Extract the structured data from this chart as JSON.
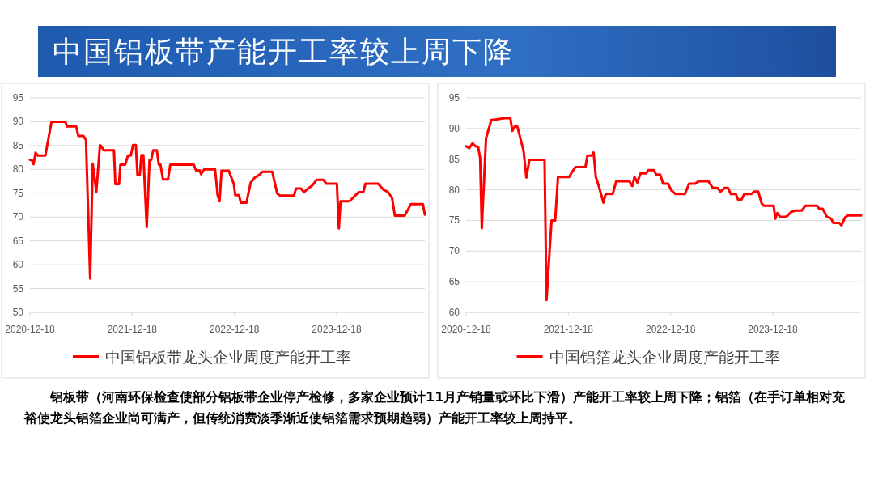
{
  "chart_data": [
    {
      "type": "line",
      "title": "中国铝板带产能开工率较上周下降",
      "annotations": [
        "铝板带（河南环保检查使部分铝板带企业停产检修，多家企业预计11月产销量或环比下滑）产能开工率较上周下降；铝箔（在手订单相对充裕使龙头铝箔企业尚可满产，但传统消费淡季渐近使铝箔需求预期趋弱）产能开工率较上周持平。"
      ],
      "x": [
        "2020-12-18",
        "2020-12-24",
        "2020-12-31",
        "2021-01-07",
        "2021-01-15",
        "2021-02-11",
        "2021-02-24",
        "2021-03-05",
        "2021-04-23",
        "2021-04-30",
        "2021-06-01",
        "2021-06-09",
        "2021-06-27",
        "2021-07-06",
        "2021-07-21",
        "2021-07-30",
        "2021-08-12",
        "2021-08-25",
        "2021-09-09",
        "2021-10-14",
        "2021-10-19",
        "2021-11-01",
        "2021-11-06",
        "2021-11-23",
        "2021-12-03",
        "2021-12-13",
        "2021-12-21",
        "2021-12-31",
        "2022-01-06",
        "2022-01-14",
        "2022-01-20",
        "2022-01-27",
        "2022-02-08",
        "2022-02-18",
        "2022-02-24",
        "2022-03-03",
        "2022-03-16",
        "2022-03-23",
        "2022-03-29",
        "2022-04-07",
        "2022-04-25",
        "2022-05-03",
        "2022-07-26",
        "2022-08-03",
        "2022-08-16",
        "2022-08-21",
        "2022-09-01",
        "2022-10-10",
        "2022-10-19",
        "2022-10-26",
        "2022-11-02",
        "2022-11-28",
        "2022-12-16",
        "2022-12-21",
        "2023-01-03",
        "2023-01-10",
        "2023-01-30",
        "2023-02-14",
        "2023-03-01",
        "2023-03-16",
        "2023-03-28",
        "2023-05-02",
        "2023-05-20",
        "2023-05-30",
        "2023-07-19",
        "2023-07-26",
        "2023-08-13",
        "2023-08-23",
        "2023-09-07",
        "2023-09-22",
        "2023-10-07",
        "2023-11-01",
        "2023-11-11",
        "2023-12-19",
        "2023-12-26",
        "2024-01-01",
        "2024-02-02",
        "2024-02-24",
        "2024-03-05",
        "2024-03-22",
        "2024-03-30",
        "2024-05-14",
        "2024-06-03",
        "2024-06-18",
        "2024-07-03",
        "2024-07-13",
        "2024-08-17",
        "2024-09-08",
        "2024-10-21",
        "2024-10-28"
      ],
      "series": [
        {
          "name": "中国铝板带龙头企业周度产能开工率",
          "color": "#ff0000",
          "values": [
            82.0,
            82.0,
            81.1,
            83.5,
            82.9,
            82.9,
            87.1,
            90,
            90,
            89,
            89,
            87,
            87,
            86.2,
            57.1,
            81.2,
            75.3,
            85.1,
            84,
            84,
            76.9,
            76.9,
            81,
            81,
            82.9,
            82.9,
            85.1,
            85.1,
            78.8,
            78.8,
            83,
            83,
            67.9,
            82,
            82,
            84,
            84,
            81,
            81,
            77.9,
            77.9,
            81,
            81,
            79.8,
            79.8,
            79,
            80,
            80,
            74.6,
            73.3,
            79.7,
            79.7,
            76.9,
            74.6,
            74.6,
            73,
            73,
            77.2,
            78.3,
            78.8,
            79.5,
            79.5,
            74.9,
            74.5,
            74.5,
            76,
            76,
            75.2,
            76,
            76.6,
            77.8,
            77.8,
            77,
            77,
            67.6,
            73.3,
            73.3,
            74.6,
            75.2,
            75.2,
            77,
            77,
            75.7,
            75.3,
            74,
            70.3,
            70.3,
            72.7,
            72.7,
            70.5
          ]
        }
      ],
      "xlim": [
        "2020-12-18",
        "2024-10-28"
      ],
      "xticks": [
        {
          "value": "2020-12-18",
          "label": "2020-12-18"
        },
        {
          "value": "2021-12-18",
          "label": "2021-12-18"
        },
        {
          "value": "2022-12-18",
          "label": "2022-12-18"
        },
        {
          "value": "2023-12-18",
          "label": "2023-12-18"
        }
      ],
      "ylim": [
        50,
        95
      ],
      "yticks": [
        50,
        55,
        60,
        65,
        70,
        75,
        80,
        85,
        90,
        95
      ],
      "grid": "y",
      "legend": "bottom",
      "marker": "none",
      "line_style": "solid"
    },
    {
      "type": "line",
      "x": [
        "2020-12-18",
        "2020-12-29",
        "2021-01-10",
        "2021-01-20",
        "2021-01-30",
        "2021-02-06",
        "2021-02-12",
        "2021-02-27",
        "2021-03-18",
        "2021-04-05",
        "2021-05-05",
        "2021-05-25",
        "2021-06-01",
        "2021-06-09",
        "2021-06-19",
        "2021-07-11",
        "2021-07-21",
        "2021-08-01",
        "2021-09-24",
        "2021-10-01",
        "2021-10-19",
        "2021-11-01",
        "2021-11-11",
        "2021-12-21",
        "2021-12-31",
        "2022-01-12",
        "2022-02-17",
        "2022-02-24",
        "2022-03-11",
        "2022-03-18",
        "2022-03-26",
        "2022-04-05",
        "2022-04-22",
        "2022-04-30",
        "2022-05-25",
        "2022-06-07",
        "2022-07-24",
        "2022-08-03",
        "2022-08-11",
        "2022-08-21",
        "2022-09-02",
        "2022-09-22",
        "2022-09-29",
        "2022-10-20",
        "2022-10-27",
        "2022-11-11",
        "2022-11-21",
        "2022-12-09",
        "2022-12-21",
        "2023-01-05",
        "2023-02-07",
        "2023-02-22",
        "2023-03-16",
        "2023-03-28",
        "2023-05-02",
        "2023-05-18",
        "2023-06-04",
        "2023-06-14",
        "2023-06-29",
        "2023-07-11",
        "2023-07-21",
        "2023-08-08",
        "2023-08-16",
        "2023-08-28",
        "2023-09-07",
        "2023-10-02",
        "2023-10-12",
        "2023-10-27",
        "2023-11-08",
        "2023-11-16",
        "2023-12-21",
        "2023-12-27",
        "2024-01-03",
        "2024-01-13",
        "2024-02-04",
        "2024-02-22",
        "2024-03-08",
        "2024-03-30",
        "2024-04-12",
        "2024-05-24",
        "2024-06-01",
        "2024-06-13",
        "2024-06-28",
        "2024-07-13",
        "2024-07-21",
        "2024-08-12",
        "2024-08-19",
        "2024-09-01",
        "2024-09-11",
        "2024-10-28"
      ],
      "series": [
        {
          "name": "中国铝箔龙头企业周度产能开工率",
          "color": "#ff0000",
          "values": [
            87.1,
            86.8,
            87.6,
            87.1,
            87,
            85.2,
            73.7,
            88.4,
            91.4,
            91.5,
            91.7,
            91.7,
            89.6,
            90.3,
            90.3,
            86.4,
            82,
            84.9,
            84.9,
            62,
            75,
            75,
            82.1,
            82.1,
            82.9,
            83.7,
            83.7,
            85.6,
            85.6,
            86.1,
            82.1,
            80.7,
            77.9,
            79.3,
            79.3,
            81.4,
            81.4,
            80.6,
            82.1,
            81.2,
            82.7,
            82.7,
            83.2,
            83.2,
            82.5,
            82.5,
            81,
            81,
            79.9,
            79.3,
            79.3,
            81,
            81,
            81.4,
            81.4,
            80.3,
            80.3,
            79.7,
            80.3,
            80.3,
            79.3,
            79.3,
            78.4,
            78.4,
            79.3,
            79.3,
            79.7,
            79.7,
            77.8,
            77.4,
            77.4,
            75.3,
            76.2,
            75.6,
            75.6,
            76.4,
            76.6,
            76.6,
            77.4,
            77.4,
            76.9,
            76.9,
            75.6,
            75.3,
            74.6,
            74.6,
            74.2,
            75.5,
            75.8,
            75.8
          ]
        }
      ],
      "xlim": [
        "2020-12-18",
        "2024-10-28"
      ],
      "xticks": [
        {
          "value": "2020-12-18",
          "label": "2020-12-18"
        },
        {
          "value": "2021-12-18",
          "label": "2021-12-18"
        },
        {
          "value": "2022-12-18",
          "label": "2022-12-18"
        },
        {
          "value": "2023-12-18",
          "label": "2023-12-18"
        }
      ],
      "ylim": [
        60,
        95
      ],
      "yticks": [
        60,
        65,
        70,
        75,
        80,
        85,
        90,
        95
      ],
      "grid": "y",
      "legend": "bottom",
      "marker": "none",
      "line_style": "solid"
    }
  ]
}
